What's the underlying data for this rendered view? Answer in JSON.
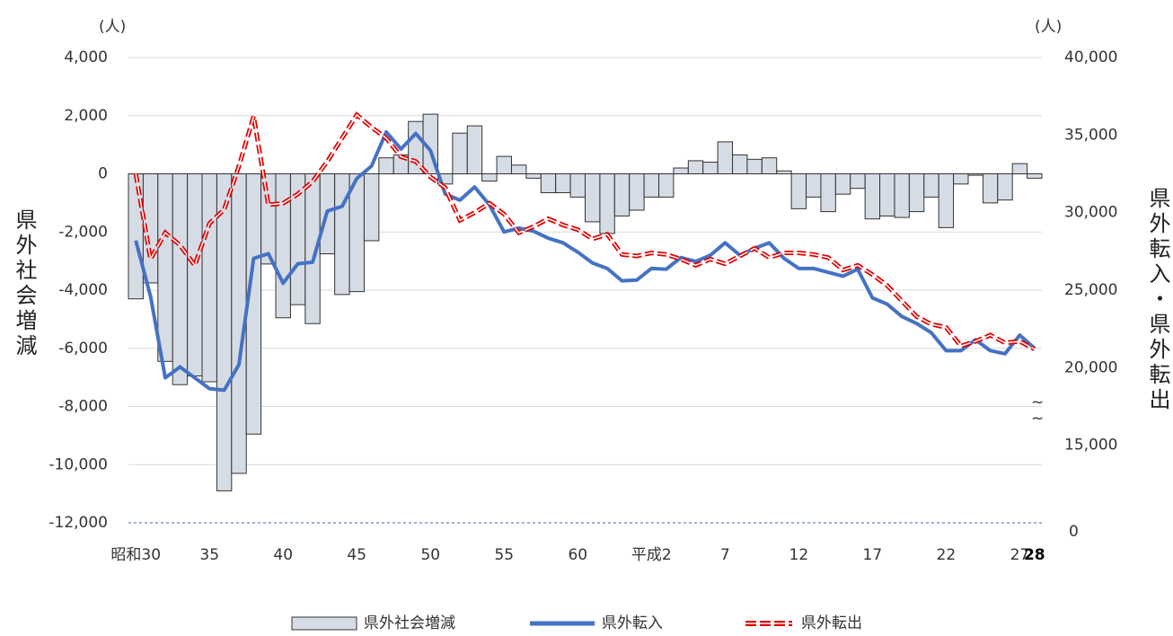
{
  "chart_data": {
    "type": "bar_line",
    "y_unit": "(人)",
    "y2_unit": "(人)",
    "ylabel": "県外社会増減",
    "y2label": "県外転入・県外転出",
    "categories": [
      "昭和30",
      null,
      null,
      null,
      null,
      "35",
      null,
      null,
      null,
      null,
      "40",
      null,
      null,
      null,
      null,
      "45",
      null,
      null,
      null,
      null,
      "50",
      null,
      null,
      null,
      null,
      "55",
      null,
      null,
      null,
      null,
      "60",
      null,
      null,
      null,
      null,
      "平成2",
      null,
      null,
      null,
      null,
      "7",
      null,
      null,
      null,
      null,
      "12",
      null,
      null,
      null,
      null,
      "17",
      null,
      null,
      null,
      null,
      "22",
      null,
      null,
      null,
      null,
      "27",
      "28"
    ],
    "bold_categories": [
      "28"
    ],
    "ylim": [
      -12000,
      4000
    ],
    "yticks": [
      {
        "value": -12000,
        "label": "-12,000"
      },
      {
        "value": -10000,
        "label": "-10,000"
      },
      {
        "value": -8000,
        "label": "-8,000"
      },
      {
        "value": -6000,
        "label": "-6,000"
      },
      {
        "value": -4000,
        "label": "-4,000"
      },
      {
        "value": -2000,
        "label": "-2,000"
      },
      0,
      {
        "value": 2000,
        "label": "2,000"
      },
      {
        "value": 4000,
        "label": "4,000"
      }
    ],
    "y2lim": [
      10000,
      40000
    ],
    "y2ticks": [
      {
        "value": 15000,
        "label": "15,000"
      },
      {
        "value": 20000,
        "label": "20,000"
      },
      {
        "value": 25000,
        "label": "25,000"
      },
      {
        "value": 30000,
        "label": "30,000"
      },
      {
        "value": 35000,
        "label": "35,000"
      },
      {
        "value": 40000,
        "label": "40,000"
      }
    ],
    "y2_break_label": "0",
    "grid": true,
    "legend": "bottom",
    "series": [
      {
        "name": "県外社会増減",
        "type": "bar",
        "color": "#d6dce5",
        "values": [
          -4300,
          -3750,
          -6450,
          -7250,
          -6950,
          -7150,
          -10900,
          -10300,
          -8950,
          -3100,
          -4950,
          -4500,
          -5150,
          -2750,
          -4150,
          -4050,
          -2300,
          550,
          650,
          1800,
          2050,
          -350,
          1400,
          1650,
          -250,
          600,
          300,
          -150,
          -650,
          -650,
          -800,
          -1650,
          -2050,
          -1450,
          -1250,
          -800,
          -800,
          200,
          450,
          400,
          1100,
          650,
          500,
          550,
          100,
          -1200,
          -800,
          -1300,
          -700,
          -500,
          -1550,
          -1450,
          -1500,
          -1300,
          -800,
          -1850,
          -350,
          -50,
          -1000,
          -900,
          350,
          -150
        ]
      },
      {
        "name": "県外転入",
        "type": "line",
        "axis": "y2",
        "color": "#4472c4",
        "values": [
          28200,
          24600,
          19350,
          20050,
          19350,
          18650,
          18550,
          20200,
          27050,
          27350,
          25450,
          26700,
          26800,
          30100,
          30400,
          32200,
          33000,
          35200,
          34100,
          35100,
          34000,
          31200,
          30800,
          31650,
          30500,
          28750,
          29000,
          28800,
          28350,
          28050,
          27450,
          26750,
          26400,
          25600,
          25650,
          26400,
          26350,
          27100,
          26850,
          27250,
          28050,
          27250,
          27700,
          28050,
          27050,
          26400,
          26400,
          26150,
          25900,
          26350,
          24500,
          24100,
          23300,
          22850,
          22250,
          21100,
          21100,
          21800,
          21100,
          20900,
          22100,
          21250
        ]
      },
      {
        "name": "県外転出",
        "type": "dashed",
        "axis": "y2",
        "color": "#e00000",
        "values": [
          32500,
          27000,
          28700,
          27900,
          26600,
          29300,
          30200,
          33000,
          36200,
          30500,
          30600,
          31200,
          32000,
          33300,
          34800,
          36300,
          35500,
          34800,
          33600,
          33300,
          32300,
          31600,
          29500,
          30000,
          30600,
          29900,
          28700,
          29100,
          29600,
          29200,
          28900,
          28300,
          28600,
          27300,
          27200,
          27400,
          27300,
          27000,
          26600,
          27000,
          26700,
          27200,
          27700,
          27100,
          27400,
          27400,
          27300,
          27100,
          26300,
          26600,
          26000,
          25300,
          24300,
          23300,
          22800,
          22600,
          21400,
          21700,
          22100,
          21600,
          21700,
          21200
        ]
      }
    ]
  }
}
